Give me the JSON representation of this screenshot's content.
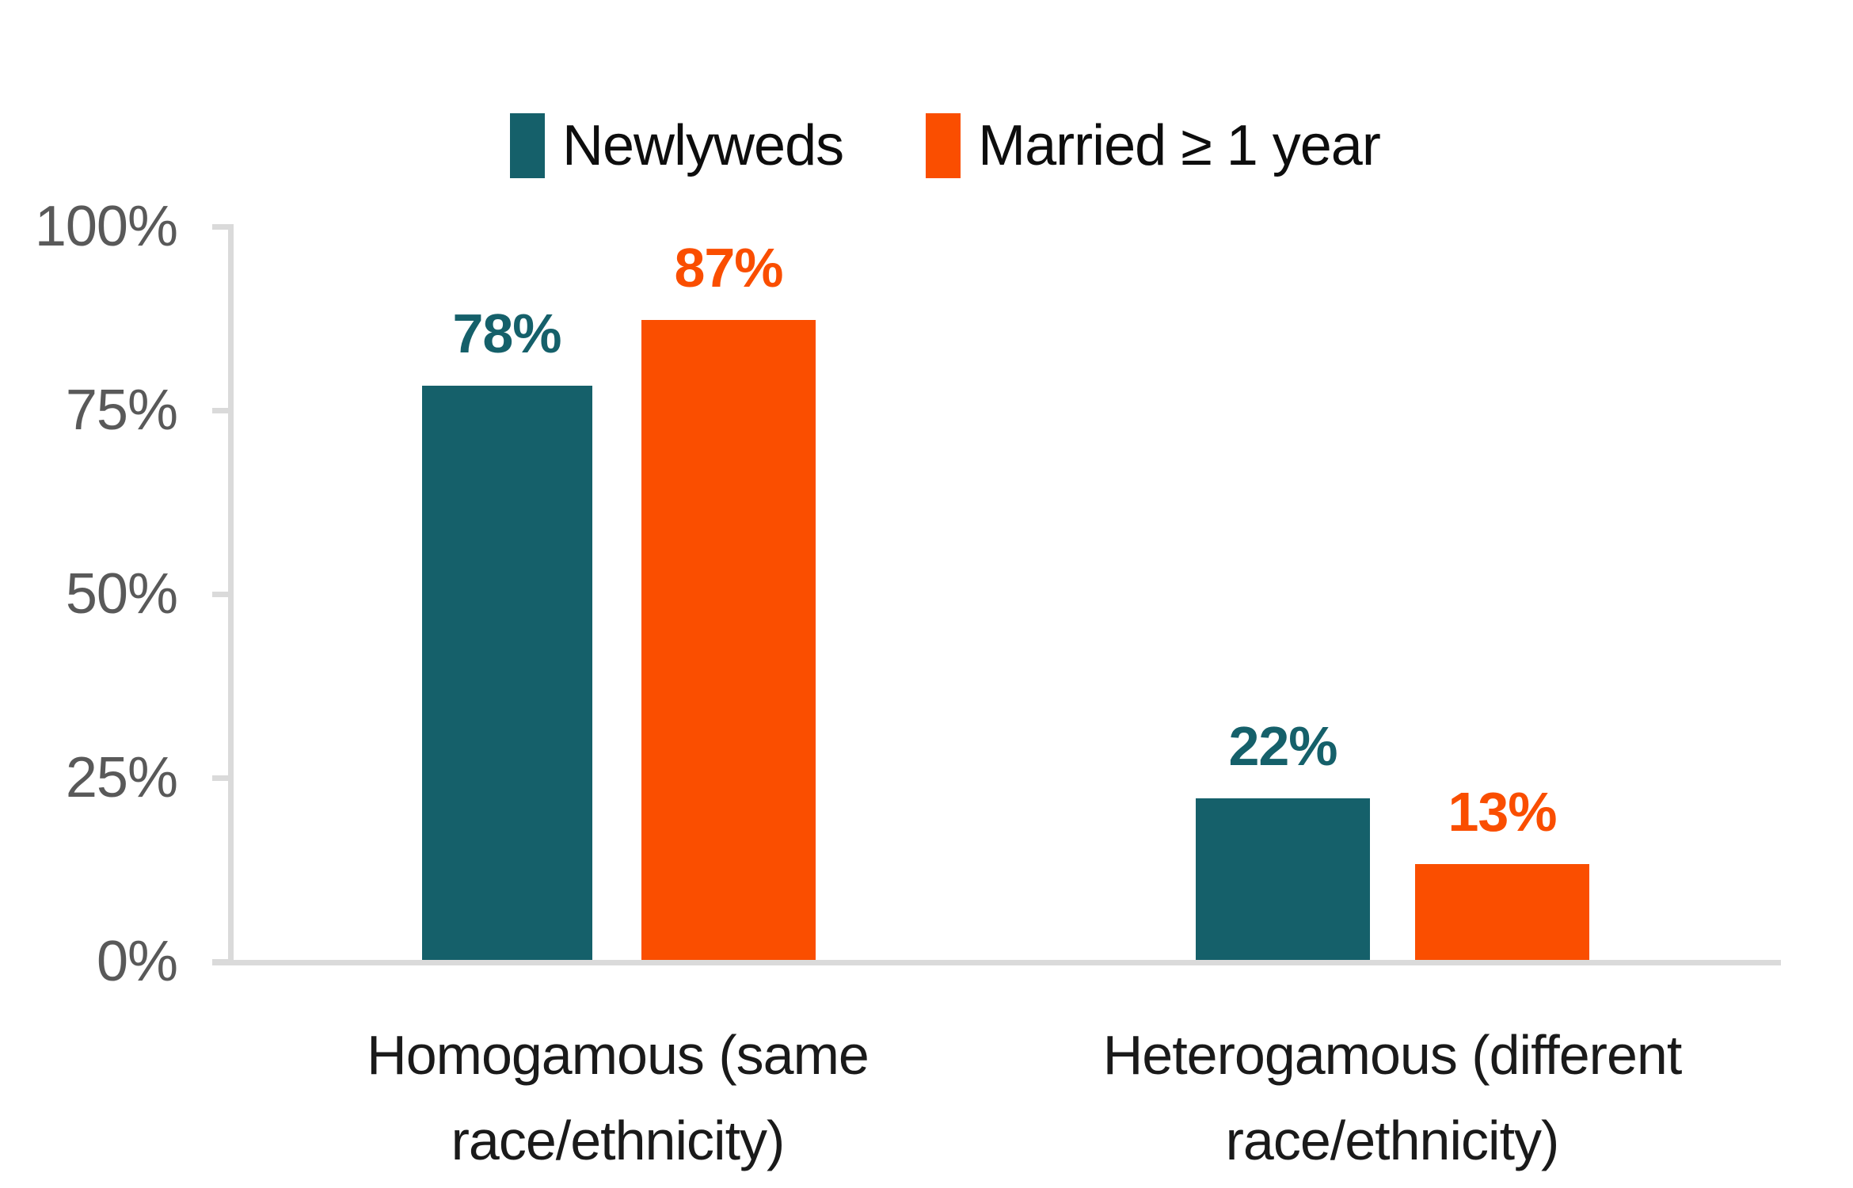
{
  "chart_data": {
    "type": "bar",
    "categories": [
      "Homogamous (same race/ethnicity)",
      "Heterogamous (different race/ethnicity)"
    ],
    "series": [
      {
        "name": "Newlyweds",
        "color": "#15606A",
        "values": [
          78,
          22
        ],
        "labels": [
          "78%",
          "22%"
        ]
      },
      {
        "name": "Married ≥ 1 year",
        "color": "#FA4E00",
        "values": [
          87,
          13
        ],
        "labels": [
          "87%",
          "13%"
        ]
      }
    ],
    "yticks": [
      "100%",
      "75%",
      "50%",
      "25%",
      "0%"
    ],
    "ylim": [
      0,
      100
    ],
    "ylabel": "",
    "xlabel": "",
    "title": "",
    "grid": "off",
    "legend_position": "top",
    "axis_color": "#DADADA",
    "tick_label_color": "#595959",
    "category_label_color": "#1A1A1A",
    "background_color": "#FFFFFF"
  }
}
